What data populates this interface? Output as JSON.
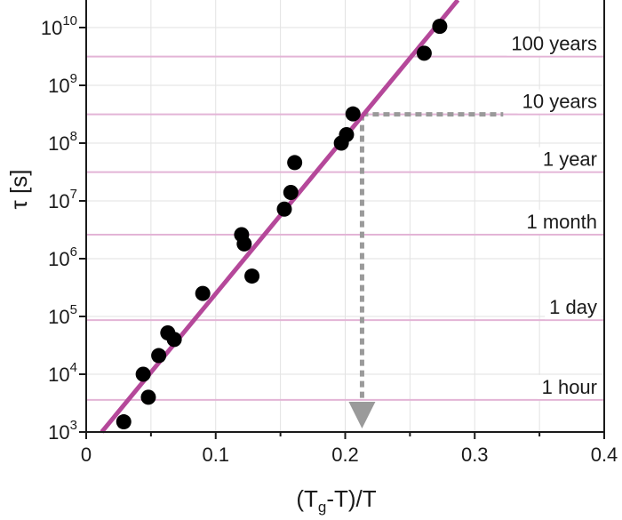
{
  "chart_data": {
    "type": "scatter",
    "xlabel": "(T_g-T)/T",
    "xlabel_parts": {
      "before": "(T",
      "sub": "g",
      "after": "-T)/T"
    },
    "ylabel": "τ [s]",
    "xlim": [
      0,
      0.4
    ],
    "ylim": [
      1000,
      30000000000
    ],
    "y_scale": "log",
    "grid": true,
    "x_ticks": [
      {
        "value": 0,
        "label": "0"
      },
      {
        "value": 0.1,
        "label": "0.1"
      },
      {
        "value": 0.2,
        "label": "0.2"
      },
      {
        "value": 0.3,
        "label": "0.3"
      },
      {
        "value": 0.4,
        "label": "0.4"
      }
    ],
    "y_ticks": [
      {
        "value": 1000,
        "base": "10",
        "exp": "3"
      },
      {
        "value": 10000,
        "base": "10",
        "exp": "4"
      },
      {
        "value": 100000,
        "base": "10",
        "exp": "5"
      },
      {
        "value": 1000000,
        "base": "10",
        "exp": "6"
      },
      {
        "value": 10000000,
        "base": "10",
        "exp": "7"
      },
      {
        "value": 100000000,
        "base": "10",
        "exp": "8"
      },
      {
        "value": 1000000000,
        "base": "10",
        "exp": "9"
      },
      {
        "value": 10000000000,
        "base": "10",
        "exp": "10"
      }
    ],
    "points": [
      {
        "x": 0.029,
        "y": 1500
      },
      {
        "x": 0.044,
        "y": 10000
      },
      {
        "x": 0.048,
        "y": 4000
      },
      {
        "x": 0.056,
        "y": 21000
      },
      {
        "x": 0.063,
        "y": 52000
      },
      {
        "x": 0.068,
        "y": 40000
      },
      {
        "x": 0.09,
        "y": 250000
      },
      {
        "x": 0.12,
        "y": 2600000
      },
      {
        "x": 0.122,
        "y": 1800000
      },
      {
        "x": 0.128,
        "y": 500000
      },
      {
        "x": 0.153,
        "y": 7200000
      },
      {
        "x": 0.158,
        "y": 14000000
      },
      {
        "x": 0.161,
        "y": 46000000
      },
      {
        "x": 0.197,
        "y": 100000000
      },
      {
        "x": 0.201,
        "y": 140000000
      },
      {
        "x": 0.206,
        "y": 320000000
      },
      {
        "x": 0.261,
        "y": 3600000000
      },
      {
        "x": 0.273,
        "y": 10500000000
      }
    ],
    "fit_line": {
      "x": [
        0.012,
        0.287
      ],
      "y": [
        1000,
        30000000000
      ],
      "color": "#b5489a"
    },
    "reference_lines": [
      {
        "label": "1 hour",
        "y": 3600
      },
      {
        "label": "1 day",
        "y": 86400
      },
      {
        "label": "1 month",
        "y": 2600000
      },
      {
        "label": "1 year",
        "y": 31500000
      },
      {
        "label": "10 years",
        "y": 315000000
      },
      {
        "label": "100 years",
        "y": 3150000000
      }
    ],
    "reference_line_color": "#e3b4d6",
    "marker_color": "#000000",
    "guide_line": {
      "x": 0.213,
      "y": 315000000,
      "x_end": 0.322,
      "color": "#9a9a9a"
    }
  }
}
